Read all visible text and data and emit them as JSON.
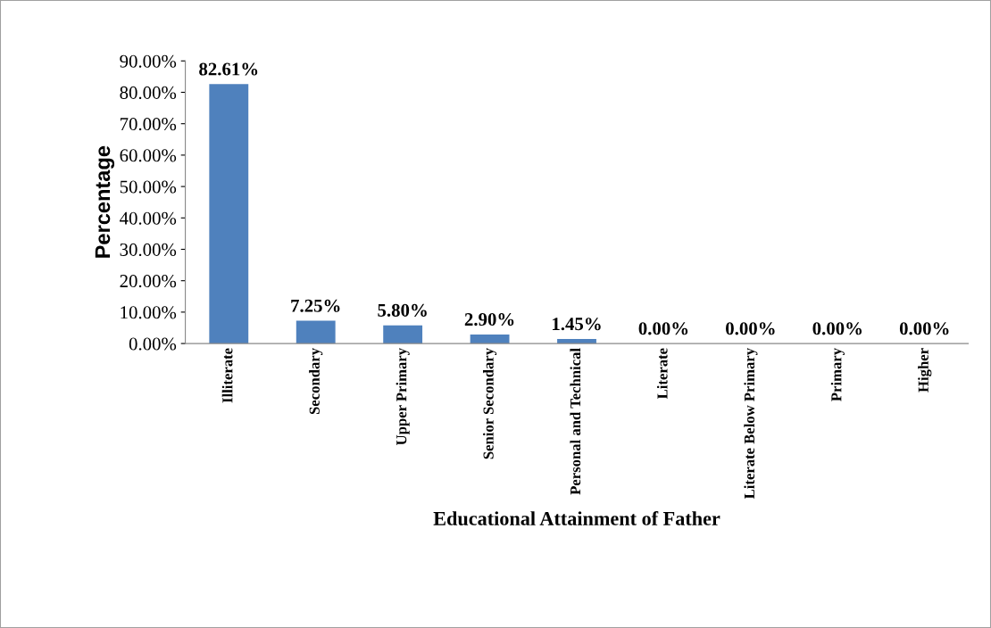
{
  "chart_data": {
    "type": "bar",
    "xlabel": "Educational Attainment of Father",
    "ylabel": "Percentage",
    "categories": [
      "Illiterate",
      "Secondary",
      "Upper Primary",
      "Senior Secondary",
      "Personal and Technical",
      "Literate",
      "Literate Below Primary",
      "Primary",
      "Higher"
    ],
    "values": [
      82.61,
      7.25,
      5.8,
      2.9,
      1.45,
      0,
      0,
      0,
      0
    ],
    "value_labels": [
      "82.61%",
      "7.25%",
      "5.80%",
      "2.90%",
      "1.45%",
      "0.00%",
      "0.00%",
      "0.00%",
      "0.00%"
    ],
    "color": "#4f81bd",
    "ylim": [
      0,
      90
    ],
    "yticks": [
      {
        "value": 0,
        "label": "0.00%"
      },
      {
        "value": 10,
        "label": "10.00%"
      },
      {
        "value": 20,
        "label": "20.00%"
      },
      {
        "value": 30,
        "label": "30.00%"
      },
      {
        "value": 40,
        "label": "40.00%"
      },
      {
        "value": 50,
        "label": "50.00%"
      },
      {
        "value": 60,
        "label": "60.00%"
      },
      {
        "value": 70,
        "label": "70.00%"
      },
      {
        "value": 80,
        "label": "80.00%"
      },
      {
        "value": 90,
        "label": "90.00%"
      }
    ],
    "grid": false,
    "legend": false
  }
}
